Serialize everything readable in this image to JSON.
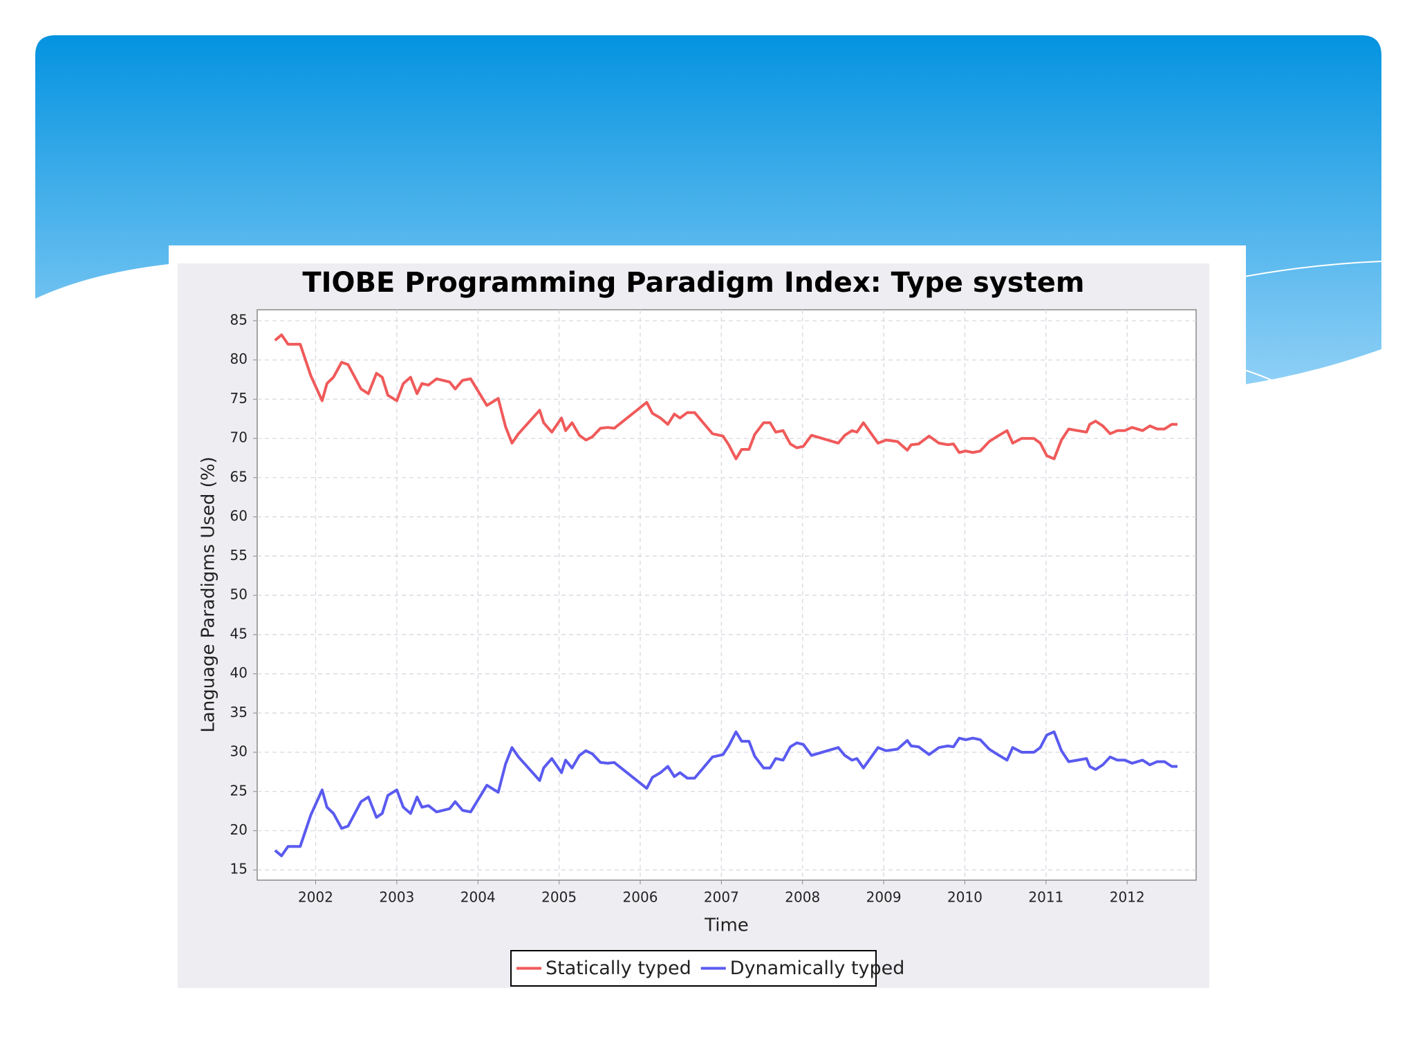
{
  "chart_data": {
    "type": "line",
    "title": "TIOBE Programming Paradigm Index:  Type system",
    "xlabel": "Time",
    "ylabel": "Language Paradigms Used (%)",
    "x": [
      2001.5,
      2001.58,
      2001.66,
      2001.81,
      2001.94,
      2002.08,
      2002.14,
      2002.22,
      2002.32,
      2002.4,
      2002.56,
      2002.65,
      2002.75,
      2002.82,
      2002.89,
      2003.0,
      2003.08,
      2003.17,
      2003.25,
      2003.31,
      2003.39,
      2003.49,
      2003.65,
      2003.72,
      2003.81,
      2003.91,
      2004.11,
      2004.25,
      2004.34,
      2004.42,
      2004.5,
      2004.76,
      2004.81,
      2004.91,
      2005.03,
      2005.08,
      2005.16,
      2005.25,
      2005.33,
      2005.41,
      2005.51,
      2005.6,
      2005.68,
      2006.08,
      2006.15,
      2006.25,
      2006.34,
      2006.42,
      2006.49,
      2006.58,
      2006.67,
      2006.89,
      2007.02,
      2007.09,
      2007.18,
      2007.25,
      2007.34,
      2007.41,
      2007.52,
      2007.6,
      2007.67,
      2007.76,
      2007.85,
      2007.93,
      2008.01,
      2008.11,
      2008.44,
      2008.52,
      2008.61,
      2008.67,
      2008.75,
      2008.93,
      2009.03,
      2009.17,
      2009.29,
      2009.34,
      2009.43,
      2009.56,
      2009.68,
      2009.79,
      2009.86,
      2009.93,
      2010.01,
      2010.1,
      2010.19,
      2010.3,
      2010.39,
      2010.52,
      2010.59,
      2010.7,
      2010.85,
      2010.93,
      2011.01,
      2011.1,
      2011.19,
      2011.28,
      2011.39,
      2011.5,
      2011.54,
      2011.61,
      2011.7,
      2011.79,
      2011.88,
      2011.97,
      2012.06,
      2012.19,
      2012.28,
      2012.37,
      2012.46,
      2012.55,
      2012.62
    ],
    "series": [
      {
        "name": "Statically typed",
        "color": "#f05a5a",
        "values": [
          82.5,
          83.2,
          82,
          82,
          78,
          74.8,
          77,
          77.8,
          79.7,
          79.4,
          76.3,
          75.7,
          78.3,
          77.8,
          75.5,
          74.8,
          77,
          77.8,
          75.7,
          77,
          76.8,
          77.6,
          77.2,
          76.3,
          77.4,
          77.6,
          74.2,
          75.1,
          71.5,
          69.4,
          70.6,
          73.6,
          72,
          70.8,
          72.6,
          71,
          72,
          70.4,
          69.8,
          70.2,
          71.3,
          71.4,
          71.3,
          74.6,
          73.2,
          72.6,
          71.8,
          73.1,
          72.6,
          73.3,
          73.3,
          70.6,
          70.3,
          69.2,
          67.4,
          68.6,
          68.6,
          70.5,
          72,
          72,
          70.8,
          71,
          69.3,
          68.8,
          69,
          70.4,
          69.4,
          70.4,
          71,
          70.8,
          72,
          69.4,
          69.8,
          69.6,
          68.5,
          69.2,
          69.3,
          70.3,
          69.4,
          69.2,
          69.3,
          68.2,
          68.4,
          68.2,
          68.4,
          69.6,
          70.2,
          71,
          69.4,
          70,
          70,
          69.4,
          67.8,
          67.4,
          69.8,
          71.2,
          71,
          70.8,
          71.8,
          72.2,
          71.6,
          70.6,
          71,
          71,
          71.4,
          71,
          71.6,
          71.2,
          71.2,
          71.8,
          71.8
        ]
      },
      {
        "name": "Dynamically typed",
        "color": "#5a5af0",
        "values": [
          17.5,
          16.8,
          18,
          18,
          22,
          25.2,
          23,
          22.2,
          20.3,
          20.6,
          23.7,
          24.3,
          21.7,
          22.2,
          24.5,
          25.2,
          23,
          22.2,
          24.3,
          23,
          23.2,
          22.4,
          22.8,
          23.7,
          22.6,
          22.4,
          25.8,
          24.9,
          28.5,
          30.6,
          29.4,
          26.4,
          28,
          29.2,
          27.4,
          29,
          28,
          29.6,
          30.2,
          29.8,
          28.7,
          28.6,
          28.7,
          25.4,
          26.8,
          27.4,
          28.2,
          26.9,
          27.4,
          26.7,
          26.7,
          29.4,
          29.7,
          30.8,
          32.6,
          31.4,
          31.4,
          29.5,
          28,
          28,
          29.2,
          29,
          30.7,
          31.2,
          31,
          29.6,
          30.6,
          29.6,
          29,
          29.2,
          28,
          30.6,
          30.2,
          30.4,
          31.5,
          30.8,
          30.7,
          29.7,
          30.6,
          30.8,
          30.7,
          31.8,
          31.6,
          31.8,
          31.6,
          30.4,
          29.8,
          29,
          30.6,
          30,
          30,
          30.6,
          32.2,
          32.6,
          30.2,
          28.8,
          29,
          29.2,
          28.2,
          27.8,
          28.4,
          29.4,
          29,
          29,
          28.6,
          29,
          28.4,
          28.8,
          28.8,
          28.2,
          28.2
        ]
      }
    ],
    "xlim": [
      2001.28,
      2012.85
    ],
    "xticks": [
      2002,
      2003,
      2004,
      2005,
      2006,
      2007,
      2008,
      2009,
      2010,
      2011,
      2012
    ],
    "ylim": [
      13.7,
      86.4
    ],
    "yticks": [
      15,
      20,
      25,
      30,
      35,
      40,
      45,
      50,
      55,
      60,
      65,
      70,
      75,
      80,
      85
    ],
    "grid": true,
    "legend": "bottom"
  }
}
